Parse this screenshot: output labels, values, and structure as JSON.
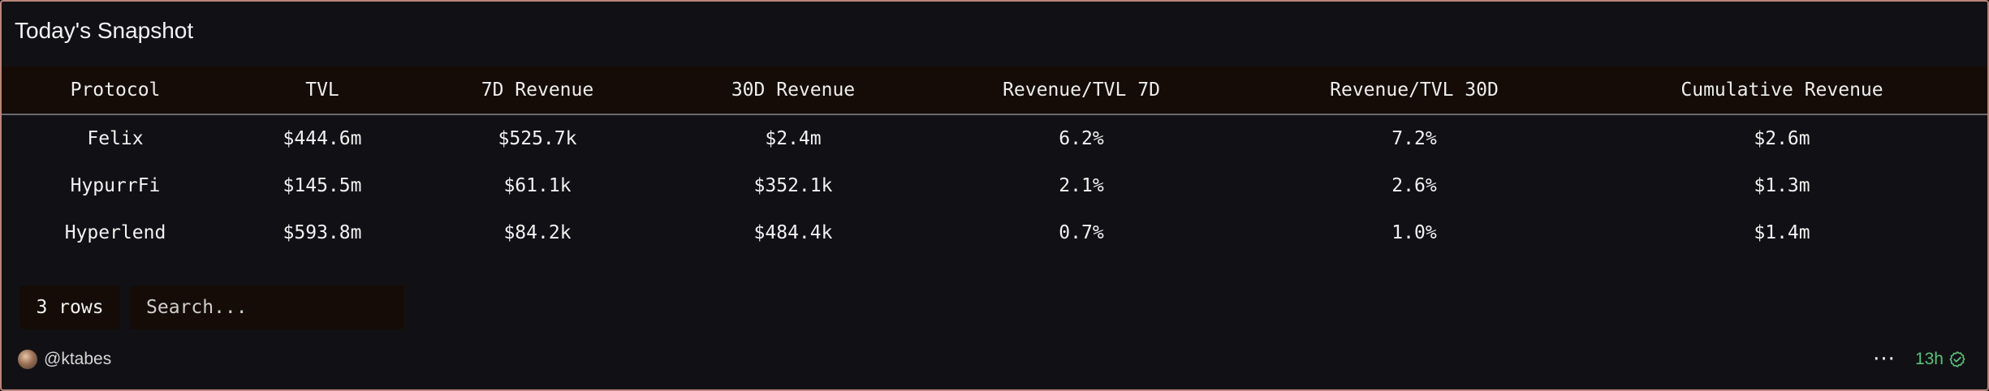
{
  "title": "Today's Snapshot",
  "table": {
    "columns": [
      "Protocol",
      "TVL",
      "7D Revenue",
      "30D Revenue",
      "Revenue/TVL 7D",
      "Revenue/TVL 30D",
      "Cumulative Revenue"
    ],
    "rows": [
      [
        "Felix",
        "$444.6m",
        "$525.7k",
        "$2.4m",
        "6.2%",
        "7.2%",
        "$2.6m"
      ],
      [
        "HypurrFi",
        "$145.5m",
        "$61.1k",
        "$352.1k",
        "2.1%",
        "2.6%",
        "$1.3m"
      ],
      [
        "Hyperlend",
        "$593.8m",
        "$84.2k",
        "$484.4k",
        "0.7%",
        "1.0%",
        "$1.4m"
      ]
    ]
  },
  "footer": {
    "row_count": "3 rows",
    "search_placeholder": "Search...",
    "author": "@ktabes",
    "more_label": "···",
    "age": "13h",
    "status_color": "#5fbf7a",
    "header_bg": "#150c07",
    "border_color": "#b98578"
  }
}
